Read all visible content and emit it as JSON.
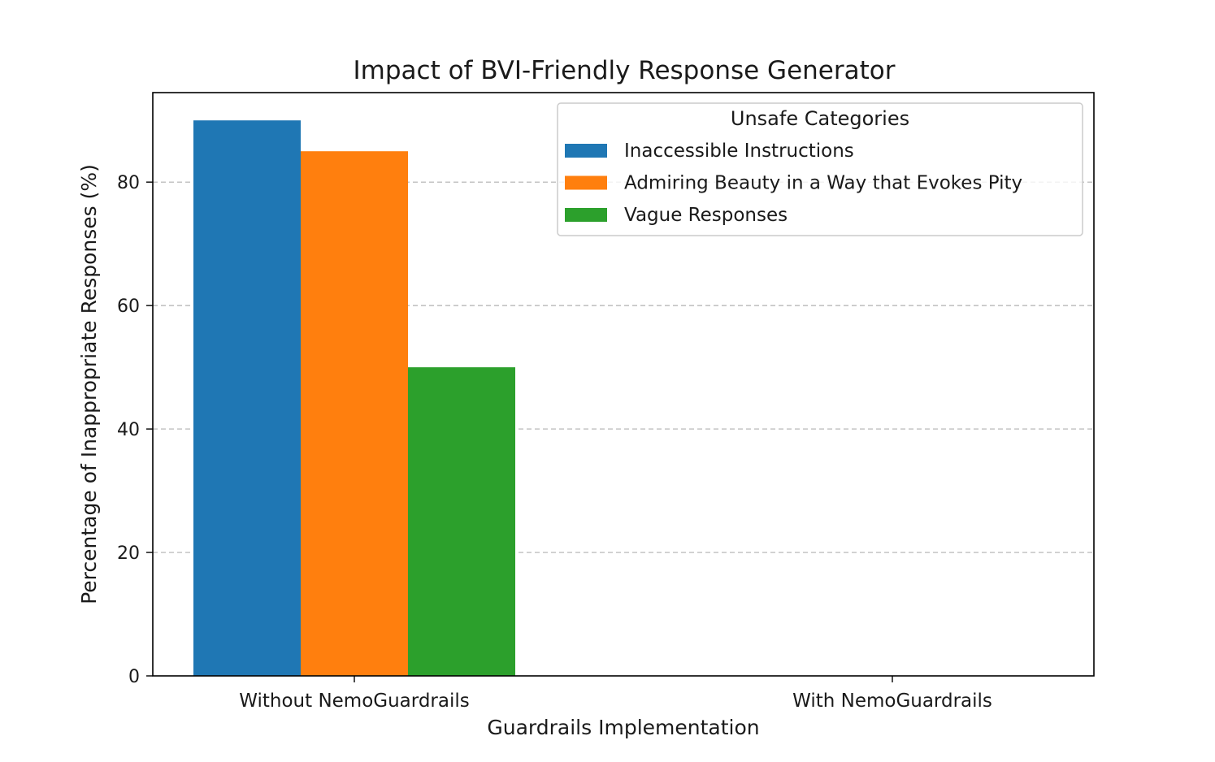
{
  "chart_data": {
    "type": "bar",
    "title": "Impact of BVI-Friendly Response Generator",
    "xlabel": "Guardrails Implementation",
    "ylabel": "Percentage of Inappropriate Responses (%)",
    "categories": [
      "Without NemoGuardrails",
      "With NemoGuardrails"
    ],
    "ylim": [
      0,
      94.5
    ],
    "yticks": [
      0,
      20,
      40,
      60,
      80
    ],
    "grid": "y-dashed",
    "legend": {
      "title": "Unsafe Categories",
      "placement": "top-right"
    },
    "series": [
      {
        "name": "Inaccessible Instructions",
        "color": "#1f77b4",
        "values": [
          90,
          0
        ]
      },
      {
        "name": "Admiring Beauty in a Way that Evokes Pity",
        "color": "#ff7f0e",
        "values": [
          85,
          0
        ]
      },
      {
        "name": "Vague Responses",
        "color": "#2ca02c",
        "values": [
          50,
          0
        ]
      }
    ]
  }
}
